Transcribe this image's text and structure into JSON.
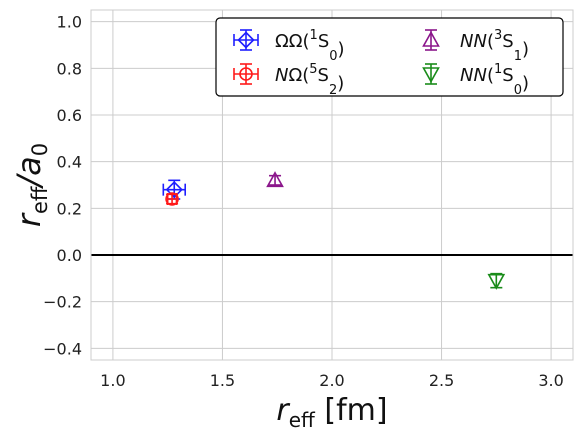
{
  "chart_data": {
    "type": "scatter",
    "title": "",
    "xlabel": {
      "main": "r",
      "sub": "eff",
      "unit": " [fm]"
    },
    "ylabel": {
      "main": "r",
      "sub": "eff",
      "slash": "/",
      "main2": "a",
      "sub2": "0"
    },
    "xlim": [
      0.9,
      3.1
    ],
    "ylim": [
      -0.45,
      1.05
    ],
    "xticks": [
      1.0,
      1.5,
      2.0,
      2.5,
      3.0
    ],
    "xtick_labels": [
      "1.0",
      "1.5",
      "2.0",
      "2.5",
      "3.0"
    ],
    "yticks": [
      -0.4,
      -0.2,
      0.0,
      0.2,
      0.4,
      0.6,
      0.8,
      1.0
    ],
    "ytick_labels": [
      "−0.4",
      "−0.2",
      "0.0",
      "0.2",
      "0.4",
      "0.6",
      "0.8",
      "1.0"
    ],
    "grid": true,
    "zero_line": 0.0,
    "legend_position": "top-right",
    "legend_columns": 2,
    "series": [
      {
        "name": {
          "parts": [
            {
              "t": "ΩΩ(",
              "s": "n"
            },
            {
              "t": "1",
              "s": "sup"
            },
            {
              "t": "S",
              "s": "n"
            },
            {
              "t": "0",
              "s": "sub"
            },
            {
              "t": ")",
              "s": "n"
            }
          ]
        },
        "color": "#1f1fff",
        "marker": "diamond",
        "x": 1.28,
        "y": 0.28,
        "xerr": 0.05,
        "yerr": 0.04
      },
      {
        "name": {
          "parts": [
            {
              "t": "N",
              "s": "i"
            },
            {
              "t": "Ω(",
              "s": "n"
            },
            {
              "t": "5",
              "s": "sup"
            },
            {
              "t": "S",
              "s": "n"
            },
            {
              "t": "2",
              "s": "sub"
            },
            {
              "t": ")",
              "s": "n"
            }
          ]
        },
        "color": "#ff1a1a",
        "marker": "circle",
        "x": 1.27,
        "y": 0.24,
        "xerr": 0.02,
        "yerr": 0.02
      },
      {
        "name": {
          "parts": [
            {
              "t": "NN",
              "s": "i"
            },
            {
              "t": "(",
              "s": "n"
            },
            {
              "t": "3",
              "s": "sup"
            },
            {
              "t": "S",
              "s": "n"
            },
            {
              "t": "1",
              "s": "sub"
            },
            {
              "t": ")",
              "s": "n"
            }
          ]
        },
        "color": "#8b168b",
        "marker": "triangle-up",
        "x": 1.74,
        "y": 0.32,
        "xerr": 0.0,
        "yerr": 0.02
      },
      {
        "name": {
          "parts": [
            {
              "t": "NN",
              "s": "i"
            },
            {
              "t": "(",
              "s": "n"
            },
            {
              "t": "1",
              "s": "sup"
            },
            {
              "t": "S",
              "s": "n"
            },
            {
              "t": "0",
              "s": "sub"
            },
            {
              "t": ")",
              "s": "n"
            }
          ]
        },
        "color": "#1a8c1a",
        "marker": "triangle-down",
        "x": 2.75,
        "y": -0.11,
        "xerr": 0.0,
        "yerr": 0.03
      }
    ]
  }
}
